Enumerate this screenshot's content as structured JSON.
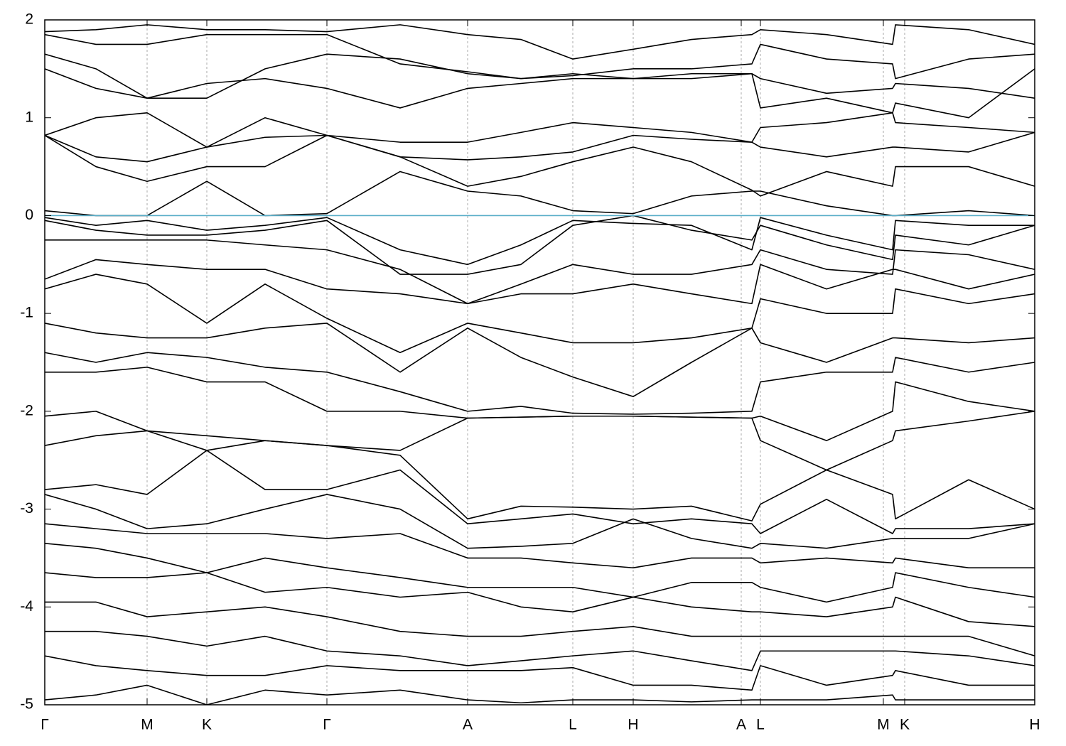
{
  "chart_data": {
    "type": "line",
    "x": [
      0,
      0.72,
      1.44,
      2.28,
      3.1,
      3.97,
      5.0,
      5.95,
      6.7,
      7.43,
      8.28,
      9.1,
      9.95,
      10.07,
      11.0,
      11.93,
      11.97,
      13.0,
      13.93
    ],
    "xlim": [
      0,
      13.93
    ],
    "xticks": [
      {
        "value": 0,
        "label": "Γ"
      },
      {
        "value": 1.44,
        "label": "M"
      },
      {
        "value": 2.28,
        "label": "K"
      },
      {
        "value": 3.97,
        "label": "Γ"
      },
      {
        "value": 5.95,
        "label": "A"
      },
      {
        "value": 7.43,
        "label": "L"
      },
      {
        "value": 8.28,
        "label": "H"
      },
      {
        "value": 9.8,
        "label": "A"
      },
      {
        "value": 10.07,
        "label": "L"
      },
      {
        "value": 11.8,
        "label": "M"
      },
      {
        "value": 12.1,
        "label": "K"
      },
      {
        "value": 13.93,
        "label": "H"
      }
    ],
    "ylim": [
      -5,
      2
    ],
    "yticks": [
      2,
      1,
      0,
      -1,
      -2,
      -3,
      -4,
      -5
    ],
    "grid": "x",
    "fermi_level": {
      "value": 0,
      "color": "#5aaec8"
    },
    "series": [
      {
        "color": "#000000",
        "values": [
          0.05,
          0.0,
          0.0,
          0.35,
          0.0,
          0.02,
          0.45,
          0.25,
          0.2,
          0.05,
          0.02,
          0.2,
          0.25,
          0.25,
          0.1,
          0.0,
          0.0,
          0.05,
          0.0
        ]
      },
      {
        "color": "#000000",
        "values": [
          0.82,
          0.5,
          0.35,
          0.5,
          0.5,
          0.82,
          0.6,
          0.3,
          0.4,
          0.55,
          0.7,
          0.55,
          0.26,
          0.2,
          0.45,
          0.3,
          0.5,
          0.5,
          0.3
        ]
      },
      {
        "color": "#000000",
        "values": [
          0.82,
          0.6,
          0.55,
          0.7,
          0.8,
          0.82,
          0.6,
          0.57,
          0.6,
          0.65,
          0.82,
          0.78,
          0.75,
          0.7,
          0.6,
          0.7,
          0.7,
          0.65,
          0.85
        ]
      },
      {
        "color": "#000000",
        "values": [
          0.82,
          1.0,
          1.05,
          0.7,
          1.0,
          0.82,
          0.75,
          0.75,
          0.85,
          0.95,
          0.9,
          0.85,
          0.75,
          0.9,
          0.95,
          1.05,
          0.95,
          0.9,
          0.85
        ]
      },
      {
        "color": "#000000",
        "values": [
          1.5,
          1.3,
          1.2,
          1.35,
          1.4,
          1.3,
          1.1,
          1.3,
          1.35,
          1.4,
          1.4,
          1.4,
          1.45,
          1.1,
          1.2,
          1.05,
          1.15,
          1.0,
          1.5
        ]
      },
      {
        "color": "#000000",
        "values": [
          1.65,
          1.5,
          1.2,
          1.2,
          1.5,
          1.65,
          1.6,
          1.45,
          1.4,
          1.45,
          1.4,
          1.45,
          1.45,
          1.4,
          1.25,
          1.3,
          1.35,
          1.3,
          1.2
        ]
      },
      {
        "color": "#000000",
        "values": [
          1.85,
          1.75,
          1.75,
          1.85,
          1.85,
          1.85,
          1.55,
          1.47,
          1.4,
          1.43,
          1.5,
          1.5,
          1.55,
          1.75,
          1.6,
          1.55,
          1.4,
          1.6,
          1.65
        ]
      },
      {
        "color": "#000000",
        "values": [
          1.88,
          1.9,
          1.95,
          1.9,
          1.9,
          1.88,
          1.95,
          1.85,
          1.8,
          1.6,
          1.7,
          1.8,
          1.85,
          1.9,
          1.85,
          1.75,
          1.95,
          1.9,
          1.75
        ]
      },
      {
        "color": "#000000",
        "values": [
          -0.02,
          -0.1,
          -0.05,
          -0.15,
          -0.1,
          -0.02,
          -0.35,
          -0.5,
          -0.3,
          -0.05,
          -0.08,
          -0.1,
          -0.35,
          -0.02,
          -0.2,
          -0.35,
          -0.05,
          -0.1,
          -0.1
        ]
      },
      {
        "color": "#000000",
        "values": [
          -0.05,
          -0.15,
          -0.2,
          -0.2,
          -0.15,
          -0.05,
          -0.6,
          -0.6,
          -0.5,
          -0.1,
          0.0,
          -0.15,
          -0.25,
          -0.1,
          -0.3,
          -0.45,
          -0.2,
          -0.3,
          -0.1
        ]
      },
      {
        "color": "#000000",
        "values": [
          -0.25,
          -0.25,
          -0.25,
          -0.25,
          -0.3,
          -0.35,
          -0.55,
          -0.9,
          -0.7,
          -0.5,
          -0.6,
          -0.6,
          -0.5,
          -0.35,
          -0.55,
          -0.6,
          -0.35,
          -0.4,
          -0.55
        ]
      },
      {
        "color": "#000000",
        "values": [
          -0.65,
          -0.45,
          -0.5,
          -0.55,
          -0.55,
          -0.75,
          -0.8,
          -0.9,
          -0.8,
          -0.8,
          -0.7,
          -0.8,
          -0.9,
          -0.5,
          -0.75,
          -0.55,
          -0.55,
          -0.75,
          -0.6
        ]
      },
      {
        "color": "#000000",
        "values": [
          -0.75,
          -0.6,
          -0.7,
          -1.1,
          -0.7,
          -1.05,
          -1.4,
          -1.1,
          -1.2,
          -1.3,
          -1.3,
          -1.25,
          -1.15,
          -0.85,
          -1.0,
          -1.0,
          -0.75,
          -0.9,
          -0.8
        ]
      },
      {
        "color": "#000000",
        "values": [
          -1.1,
          -1.2,
          -1.25,
          -1.25,
          -1.15,
          -1.1,
          -1.6,
          -1.15,
          -1.45,
          -1.65,
          -1.85,
          -1.5,
          -1.15,
          -1.3,
          -1.5,
          -1.25,
          -1.25,
          -1.3,
          -1.25
        ]
      },
      {
        "color": "#000000",
        "values": [
          -1.4,
          -1.5,
          -1.4,
          -1.45,
          -1.55,
          -1.6,
          -1.8,
          -2.0,
          -1.95,
          -2.02,
          -2.03,
          -2.02,
          -2.0,
          -1.7,
          -1.6,
          -1.6,
          -1.45,
          -1.6,
          -1.5
        ]
      },
      {
        "color": "#000000",
        "values": [
          -1.6,
          -1.6,
          -1.55,
          -1.7,
          -1.7,
          -2.0,
          -2.0,
          -2.07,
          -2.06,
          -2.05,
          -2.05,
          -2.06,
          -2.07,
          -2.05,
          -2.3,
          -2.0,
          -1.7,
          -1.9,
          -2.0
        ]
      },
      {
        "color": "#000000",
        "values": [
          -2.05,
          -2.0,
          -2.2,
          -2.25,
          -2.3,
          -2.35,
          -2.4,
          -2.07,
          -2.06,
          -2.05,
          -2.05,
          -2.06,
          -2.07,
          -2.3,
          -2.6,
          -2.3,
          -2.2,
          -2.1,
          -2.0
        ]
      },
      {
        "color": "#000000",
        "values": [
          -2.35,
          -2.25,
          -2.2,
          -2.4,
          -2.3,
          -2.35,
          -2.45,
          -3.1,
          -2.97,
          -2.98,
          -3.0,
          -2.97,
          -3.12,
          -2.95,
          -2.6,
          -2.85,
          -3.1,
          -2.7,
          -3.0
        ]
      },
      {
        "color": "#000000",
        "values": [
          -2.8,
          -2.75,
          -2.85,
          -2.4,
          -2.8,
          -2.8,
          -2.6,
          -3.15,
          -3.1,
          -3.05,
          -3.15,
          -3.1,
          -3.15,
          -3.25,
          -2.9,
          -3.25,
          -3.2,
          -3.2,
          -3.15
        ]
      },
      {
        "color": "#000000",
        "values": [
          -2.85,
          -3.0,
          -3.2,
          -3.15,
          -3.0,
          -2.85,
          -3.0,
          -3.4,
          -3.38,
          -3.35,
          -3.1,
          -3.3,
          -3.4,
          -3.35,
          -3.4,
          -3.3,
          -3.3,
          -3.3,
          -3.15
        ]
      },
      {
        "color": "#000000",
        "values": [
          -3.15,
          -3.2,
          -3.25,
          -3.25,
          -3.25,
          -3.3,
          -3.25,
          -3.5,
          -3.5,
          -3.55,
          -3.6,
          -3.5,
          -3.5,
          -3.55,
          -3.5,
          -3.55,
          -3.5,
          -3.6,
          -3.6
        ]
      },
      {
        "color": "#000000",
        "values": [
          -3.35,
          -3.4,
          -3.5,
          -3.65,
          -3.5,
          -3.6,
          -3.7,
          -3.8,
          -3.8,
          -3.8,
          -3.9,
          -3.75,
          -3.75,
          -3.8,
          -3.95,
          -3.8,
          -3.65,
          -3.8,
          -3.9
        ]
      },
      {
        "color": "#000000",
        "values": [
          -3.65,
          -3.7,
          -3.7,
          -3.65,
          -3.85,
          -3.8,
          -3.9,
          -3.85,
          -4.0,
          -4.05,
          -3.9,
          -4.0,
          -4.05,
          -4.05,
          -4.1,
          -4.0,
          -3.9,
          -4.15,
          -4.2
        ]
      },
      {
        "color": "#000000",
        "values": [
          -3.95,
          -3.95,
          -4.1,
          -4.05,
          -4.0,
          -4.1,
          -4.25,
          -4.3,
          -4.3,
          -4.25,
          -4.2,
          -4.3,
          -4.3,
          -4.3,
          -4.3,
          -4.3,
          -4.3,
          -4.3,
          -4.5
        ]
      },
      {
        "color": "#000000",
        "values": [
          -4.25,
          -4.25,
          -4.3,
          -4.4,
          -4.3,
          -4.45,
          -4.5,
          -4.6,
          -4.55,
          -4.5,
          -4.45,
          -4.55,
          -4.65,
          -4.45,
          -4.45,
          -4.45,
          -4.45,
          -4.5,
          -4.6
        ]
      },
      {
        "color": "#000000",
        "values": [
          -4.5,
          -4.6,
          -4.65,
          -4.7,
          -4.7,
          -4.6,
          -4.65,
          -4.65,
          -4.65,
          -4.62,
          -4.8,
          -4.8,
          -4.85,
          -4.6,
          -4.8,
          -4.7,
          -4.65,
          -4.8,
          -4.8
        ]
      },
      {
        "color": "#000000",
        "values": [
          -4.95,
          -4.9,
          -4.8,
          -5.0,
          -4.85,
          -4.9,
          -4.85,
          -4.95,
          -4.98,
          -4.95,
          -4.95,
          -4.97,
          -4.95,
          -4.95,
          -4.95,
          -4.9,
          -4.95,
          -4.95,
          -4.95
        ]
      }
    ]
  }
}
